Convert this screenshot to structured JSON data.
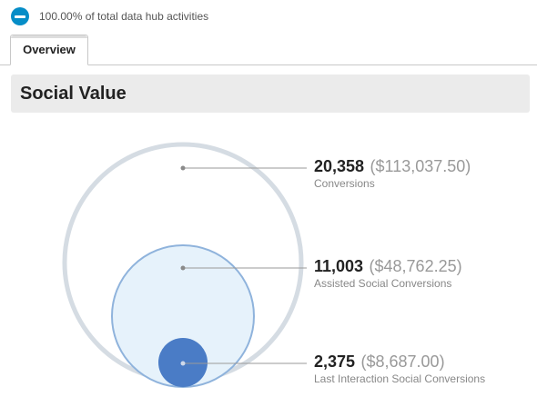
{
  "summary": {
    "text": "100.00% of total data hub activities",
    "icon": "minus-circle-icon",
    "icon_color": "#058dc7"
  },
  "tabs": [
    {
      "label": "Overview",
      "active": true
    }
  ],
  "section": {
    "title": "Social Value"
  },
  "metrics": [
    {
      "value": "20,358",
      "money": "($113,037.50)",
      "label": "Conversions",
      "ring_color": "#d5dce3"
    },
    {
      "value": "11,003",
      "money": "($48,762.25)",
      "label": "Assisted Social Conversions",
      "fill_color": "#e6f2fb",
      "stroke_color": "#8fb3dc"
    },
    {
      "value": "2,375",
      "money": "($8,687.00)",
      "label": "Last Interaction Social Conversions",
      "fill_color": "#4a7cc6"
    }
  ]
}
